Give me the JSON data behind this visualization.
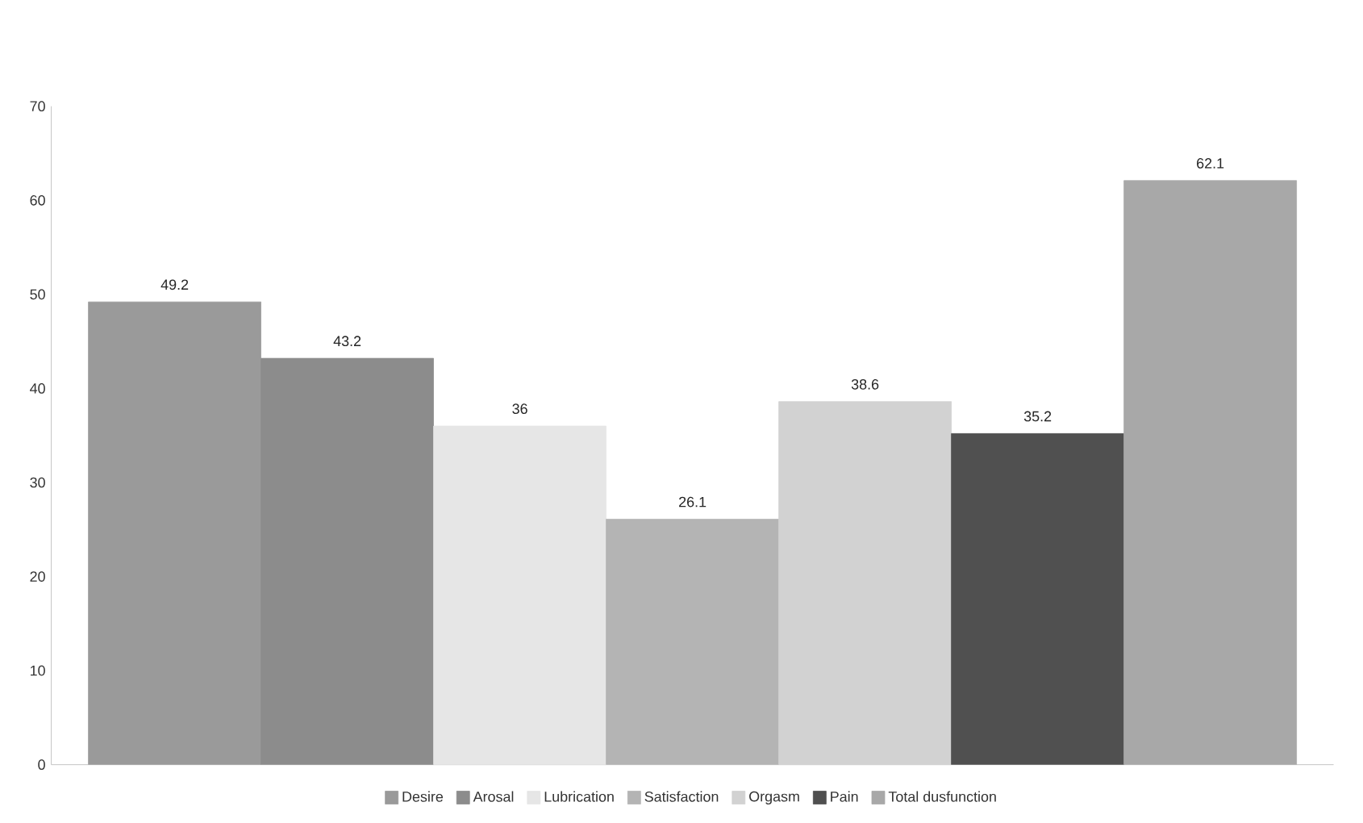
{
  "chart_data": {
    "type": "bar",
    "categories": [
      null
    ],
    "series": [
      {
        "name": "Desire",
        "color": "#9a9a9a",
        "values": [
          49.2
        ]
      },
      {
        "name": "Arosal",
        "color": "#8c8c8c",
        "values": [
          43.2
        ]
      },
      {
        "name": "Lubrication",
        "color": "#e6e6e6",
        "values": [
          36
        ]
      },
      {
        "name": "Satisfaction",
        "color": "#b4b4b4",
        "values": [
          26.1
        ]
      },
      {
        "name": "Orgasm",
        "color": "#d2d2d2",
        "values": [
          38.6
        ]
      },
      {
        "name": "Pain",
        "color": "#505050",
        "values": [
          35.2
        ]
      },
      {
        "name": "Total dusfunction",
        "color": "#a8a8a8",
        "values": [
          62.1
        ]
      }
    ],
    "ylim": [
      0,
      70
    ],
    "yticks": [
      0,
      10,
      20,
      30,
      40,
      50,
      60,
      70
    ],
    "data_labels": true,
    "grid": false,
    "legend": "bottom"
  }
}
